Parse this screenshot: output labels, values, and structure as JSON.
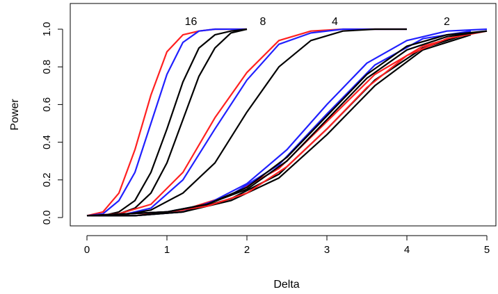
{
  "chart_data": {
    "type": "line",
    "title": "",
    "xlabel": "Delta",
    "ylabel": "Power",
    "xlim": [
      0,
      5
    ],
    "ylim": [
      0,
      1
    ],
    "x_ticks": [
      0,
      1,
      2,
      3,
      4,
      5
    ],
    "y_ticks": [
      0.0,
      0.2,
      0.4,
      0.6,
      0.8,
      1.0
    ],
    "x_tick_labels": [
      "0",
      "1",
      "2",
      "3",
      "4",
      "5"
    ],
    "y_tick_labels": [
      "0.0",
      "0.2",
      "0.4",
      "0.6",
      "0.8",
      "1.0"
    ],
    "grid": false,
    "legend": "none",
    "colors": {
      "red": "#ff2020",
      "blue": "#2020ff",
      "black": "#000000"
    },
    "annotations": [
      {
        "text": "16",
        "x": 1.3,
        "y": 1.045
      },
      {
        "text": "8",
        "x": 2.2,
        "y": 1.045
      },
      {
        "text": "4",
        "x": 3.1,
        "y": 1.045
      },
      {
        "text": "2",
        "x": 4.5,
        "y": 1.045
      }
    ],
    "series": [
      {
        "group": "16",
        "color": "red",
        "x": [
          0,
          0.2,
          0.4,
          0.6,
          0.8,
          1.0,
          1.2,
          1.4,
          1.6,
          1.8,
          2.0
        ],
        "values": [
          0.01,
          0.03,
          0.13,
          0.36,
          0.65,
          0.88,
          0.97,
          0.99,
          1.0,
          1.0,
          1.0
        ]
      },
      {
        "group": "16",
        "color": "blue",
        "x": [
          0,
          0.2,
          0.4,
          0.6,
          0.8,
          1.0,
          1.2,
          1.4,
          1.6,
          1.8,
          2.0
        ],
        "values": [
          0.01,
          0.02,
          0.09,
          0.24,
          0.5,
          0.76,
          0.93,
          0.99,
          1.0,
          1.0,
          1.0
        ]
      },
      {
        "group": "16",
        "color": "black",
        "x": [
          0,
          0.2,
          0.4,
          0.6,
          0.8,
          1.0,
          1.2,
          1.4,
          1.6,
          1.8,
          2.0
        ],
        "values": [
          0.01,
          0.01,
          0.03,
          0.09,
          0.24,
          0.47,
          0.72,
          0.9,
          0.97,
          0.99,
          1.0
        ]
      },
      {
        "group": "16",
        "color": "black",
        "x": [
          0,
          0.2,
          0.4,
          0.6,
          0.8,
          1.0,
          1.2,
          1.4,
          1.6,
          1.8,
          2.0
        ],
        "values": [
          0.01,
          0.01,
          0.02,
          0.05,
          0.13,
          0.29,
          0.52,
          0.75,
          0.9,
          0.98,
          1.0
        ]
      },
      {
        "group": "8",
        "color": "red",
        "x": [
          0,
          0.4,
          0.8,
          1.2,
          1.6,
          2.0,
          2.4,
          2.8,
          3.2,
          3.6,
          4.0
        ],
        "values": [
          0.01,
          0.02,
          0.07,
          0.24,
          0.53,
          0.77,
          0.94,
          0.99,
          1.0,
          1.0,
          1.0
        ]
      },
      {
        "group": "8",
        "color": "blue",
        "x": [
          0,
          0.4,
          0.8,
          1.2,
          1.6,
          2.0,
          2.4,
          2.8,
          3.2,
          3.6,
          4.0
        ],
        "values": [
          0.01,
          0.01,
          0.05,
          0.2,
          0.47,
          0.73,
          0.92,
          0.98,
          1.0,
          1.0,
          1.0
        ]
      },
      {
        "group": "8",
        "color": "black",
        "x": [
          0,
          0.4,
          0.8,
          1.2,
          1.6,
          2.0,
          2.4,
          2.8,
          3.2,
          3.6,
          4.0
        ],
        "values": [
          0.01,
          0.01,
          0.04,
          0.13,
          0.29,
          0.56,
          0.8,
          0.94,
          0.99,
          1.0,
          1.0
        ]
      },
      {
        "group": "4",
        "color": "red",
        "x": [
          0,
          0.6,
          1.2,
          1.8,
          2.4,
          3.0,
          3.6,
          4.2,
          4.8,
          5.4,
          6.0
        ],
        "values": [
          0.01,
          0.01,
          0.04,
          0.12,
          0.26,
          0.51,
          0.76,
          0.91,
          0.98,
          1.0,
          1.0
        ]
      },
      {
        "group": "4",
        "color": "blue",
        "x": [
          0,
          0.6,
          1.2,
          1.8,
          2.4,
          3.0,
          3.6,
          4.2,
          4.8,
          5.4,
          6.0
        ],
        "values": [
          0.01,
          0.01,
          0.03,
          0.12,
          0.28,
          0.55,
          0.81,
          0.95,
          0.99,
          1.0,
          1.0
        ]
      },
      {
        "group": "4",
        "color": "black",
        "x": [
          0,
          0.6,
          1.2,
          1.8,
          2.4,
          3.0,
          3.6,
          4.2,
          4.8,
          5.4,
          6.0
        ],
        "values": [
          0.01,
          0.01,
          0.03,
          0.1,
          0.23,
          0.47,
          0.73,
          0.9,
          0.98,
          1.0,
          1.0
        ]
      },
      {
        "group": "4",
        "color": "black",
        "x": [
          0,
          0.6,
          1.2,
          1.8,
          2.4,
          3.0,
          3.6,
          4.2,
          4.8,
          5.4,
          6.0
        ],
        "values": [
          0.01,
          0.01,
          0.03,
          0.09,
          0.21,
          0.44,
          0.7,
          0.89,
          0.97,
          0.99,
          1.0
        ]
      },
      {
        "group": "2",
        "color": "red",
        "x": [
          0,
          1.0,
          1.5,
          2.0,
          2.5,
          3.0,
          3.5,
          4.0,
          4.5,
          5.0
        ],
        "values": [
          0.01,
          0.03,
          0.06,
          0.13,
          0.27,
          0.47,
          0.69,
          0.86,
          0.95,
          0.99
        ]
      },
      {
        "group": "2",
        "color": "blue",
        "x": [
          0,
          1.0,
          1.5,
          2.0,
          2.5,
          3.0,
          3.5,
          4.0,
          4.5,
          5.0
        ],
        "values": [
          0.01,
          0.03,
          0.07,
          0.18,
          0.36,
          0.6,
          0.82,
          0.94,
          0.99,
          1.0
        ]
      },
      {
        "group": "2",
        "color": "black",
        "x": [
          0,
          1.0,
          1.5,
          2.0,
          2.5,
          3.0,
          3.5,
          4.0,
          4.5,
          5.0
        ],
        "values": [
          0.01,
          0.03,
          0.07,
          0.16,
          0.32,
          0.54,
          0.76,
          0.91,
          0.97,
          0.99
        ]
      },
      {
        "group": "2",
        "color": "black",
        "x": [
          0,
          1.0,
          1.5,
          2.0,
          2.5,
          3.0,
          3.5,
          4.0,
          4.5,
          5.0
        ],
        "values": [
          0.01,
          0.03,
          0.07,
          0.15,
          0.3,
          0.52,
          0.74,
          0.89,
          0.96,
          0.99
        ]
      }
    ]
  }
}
